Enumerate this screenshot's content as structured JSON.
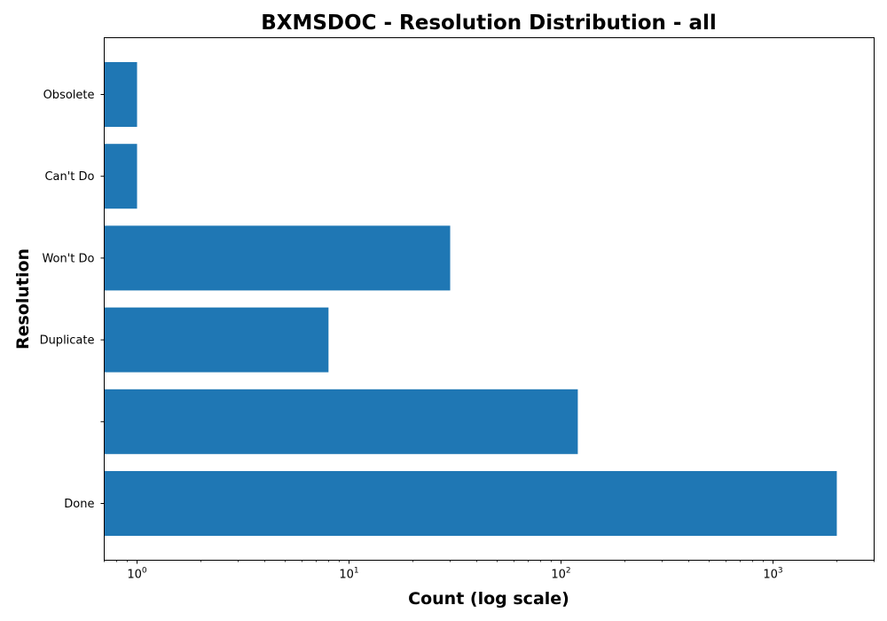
{
  "chart_data": {
    "type": "bar",
    "orientation": "horizontal",
    "title": "BXMSDOC - Resolution Distribution - all",
    "xlabel": "Count (log scale)",
    "ylabel": "Resolution",
    "x_scale": "log",
    "xlim": [
      0.7,
      3000
    ],
    "x_ticks": [
      {
        "value": 1,
        "base": "10",
        "exp": "0"
      },
      {
        "value": 10,
        "base": "10",
        "exp": "1"
      },
      {
        "value": 100,
        "base": "10",
        "exp": "2"
      },
      {
        "value": 1000,
        "base": "10",
        "exp": "3"
      }
    ],
    "categories": [
      "Done",
      "",
      "Duplicate",
      "Won't Do",
      "Can't Do",
      "Obsolete"
    ],
    "values": [
      2000,
      120,
      8,
      30,
      1,
      1
    ],
    "bar_color": "#1f77b4",
    "grid": false
  }
}
